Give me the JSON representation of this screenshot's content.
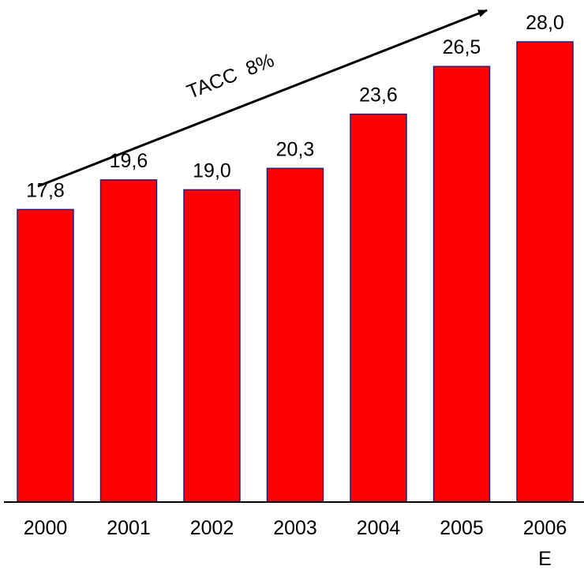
{
  "chart_data": {
    "type": "bar",
    "categories": [
      "2000",
      "2001",
      "2002",
      "2003",
      "2004",
      "2005",
      "2006\nE"
    ],
    "values": [
      17.8,
      19.6,
      19.0,
      20.3,
      23.6,
      26.5,
      28.0
    ],
    "value_labels": [
      "17,8",
      "19,6",
      "19,0",
      "20,3",
      "23,6",
      "26,5",
      "28,0"
    ],
    "annotation": "TACC  8%",
    "title": "",
    "xlabel": "",
    "ylabel": "",
    "ylim": [
      0,
      28.0
    ],
    "grid": false,
    "legend": "none",
    "bar_color": "#ff0000",
    "bar_edge_color": "#1a237e",
    "axis_color": "#000000"
  }
}
